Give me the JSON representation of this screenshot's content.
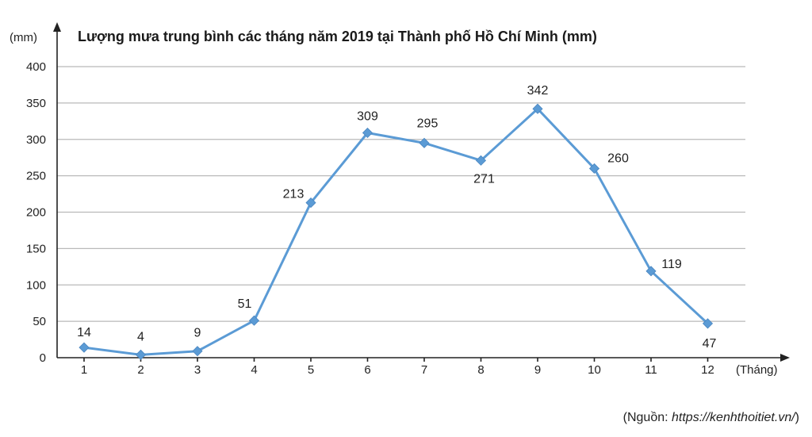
{
  "chart_data": {
    "type": "line",
    "title": "Lượng mưa trung bình các tháng năm 2019 tại Thành phố Hồ Chí Minh (mm)",
    "ylabel": "(mm)",
    "xlabel": "(Tháng)",
    "categories": [
      "1",
      "2",
      "3",
      "4",
      "5",
      "6",
      "7",
      "8",
      "9",
      "10",
      "11",
      "12"
    ],
    "values": [
      14,
      4,
      9,
      51,
      213,
      309,
      295,
      271,
      342,
      260,
      119,
      47
    ],
    "data_labels": [
      "14",
      "4",
      "9",
      "51",
      "213",
      "309",
      "295",
      "271",
      "342",
      "260",
      "119",
      "47"
    ],
    "ylim": [
      0,
      400
    ],
    "yticks": [
      "0",
      "50",
      "100",
      "150",
      "200",
      "250",
      "300",
      "350",
      "400"
    ],
    "grid": true,
    "legend": "none",
    "line_color": "#5b9bd5",
    "source_prefix": "(Nguồn: ",
    "source_url": "https://kenhthoitiet.vn/",
    "source_suffix": ")"
  }
}
